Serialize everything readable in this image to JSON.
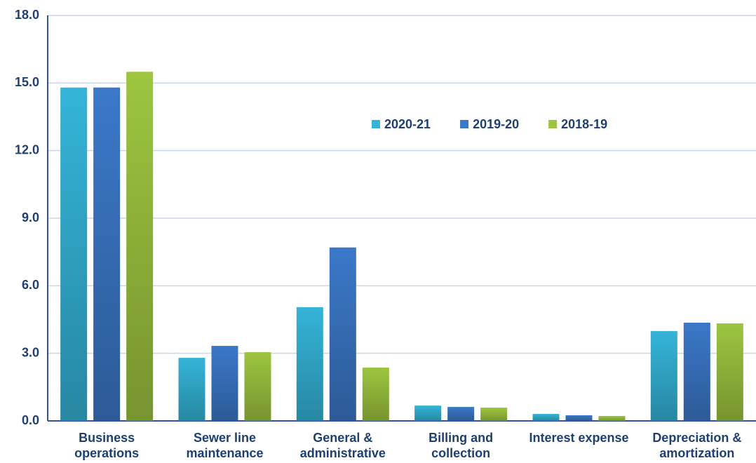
{
  "chart_data": {
    "type": "bar",
    "categories": [
      "Business operations",
      "Sewer line maintenance",
      "General & administrative",
      "Billing and collection",
      "Interest expense",
      "Depreciation & amortization"
    ],
    "series": [
      {
        "name": "2020-21",
        "color": "#34b4d8",
        "values": [
          14.8,
          2.8,
          5.05,
          0.68,
          0.31,
          3.99
        ]
      },
      {
        "name": "2019-20",
        "color": "#3b78c8",
        "values": [
          14.8,
          3.33,
          7.7,
          0.62,
          0.25,
          4.36
        ]
      },
      {
        "name": "2018-19",
        "color": "#9dc53f",
        "values": [
          15.5,
          3.05,
          2.37,
          0.59,
          0.22,
          4.33
        ]
      }
    ],
    "ylim": [
      0,
      18
    ],
    "yticks": [
      {
        "value": 0,
        "label": "0.0"
      },
      {
        "value": 3,
        "label": "3.0"
      },
      {
        "value": 6,
        "label": "6.0"
      },
      {
        "value": 9,
        "label": "9.0"
      },
      {
        "value": 12,
        "label": "12.0"
      },
      {
        "value": 15,
        "label": "15.0"
      },
      {
        "value": 18,
        "label": "18.0"
      }
    ],
    "grid": true
  }
}
